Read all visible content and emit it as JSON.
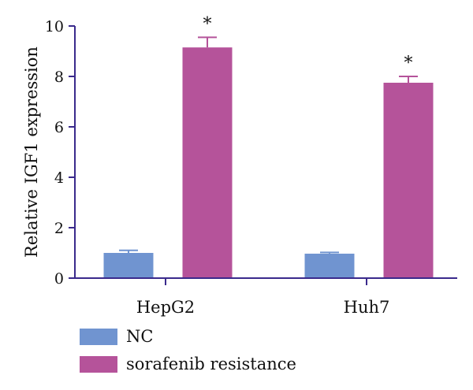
{
  "chart_data": {
    "type": "bar",
    "title": "",
    "xlabel": "",
    "ylabel": "Relative IGF1 expression",
    "ylim": [
      0,
      10
    ],
    "yticks": [
      0,
      2,
      4,
      6,
      8,
      10
    ],
    "categories": [
      "HepG2",
      "Huh7"
    ],
    "series": [
      {
        "name": "NC",
        "values": [
          1.0,
          0.97
        ],
        "errors": [
          0.1,
          0.05
        ],
        "color": "#7094d0"
      },
      {
        "name": "sorafenib resistance",
        "values": [
          9.15,
          7.75
        ],
        "errors": [
          0.4,
          0.25
        ],
        "color": "#b5539a"
      }
    ],
    "annotations": [
      {
        "series": 1,
        "category": 0,
        "text": "*"
      },
      {
        "series": 1,
        "category": 1,
        "text": "*"
      }
    ],
    "axis_color": "#3a2a8c",
    "legend_placement": "bottom-left"
  }
}
